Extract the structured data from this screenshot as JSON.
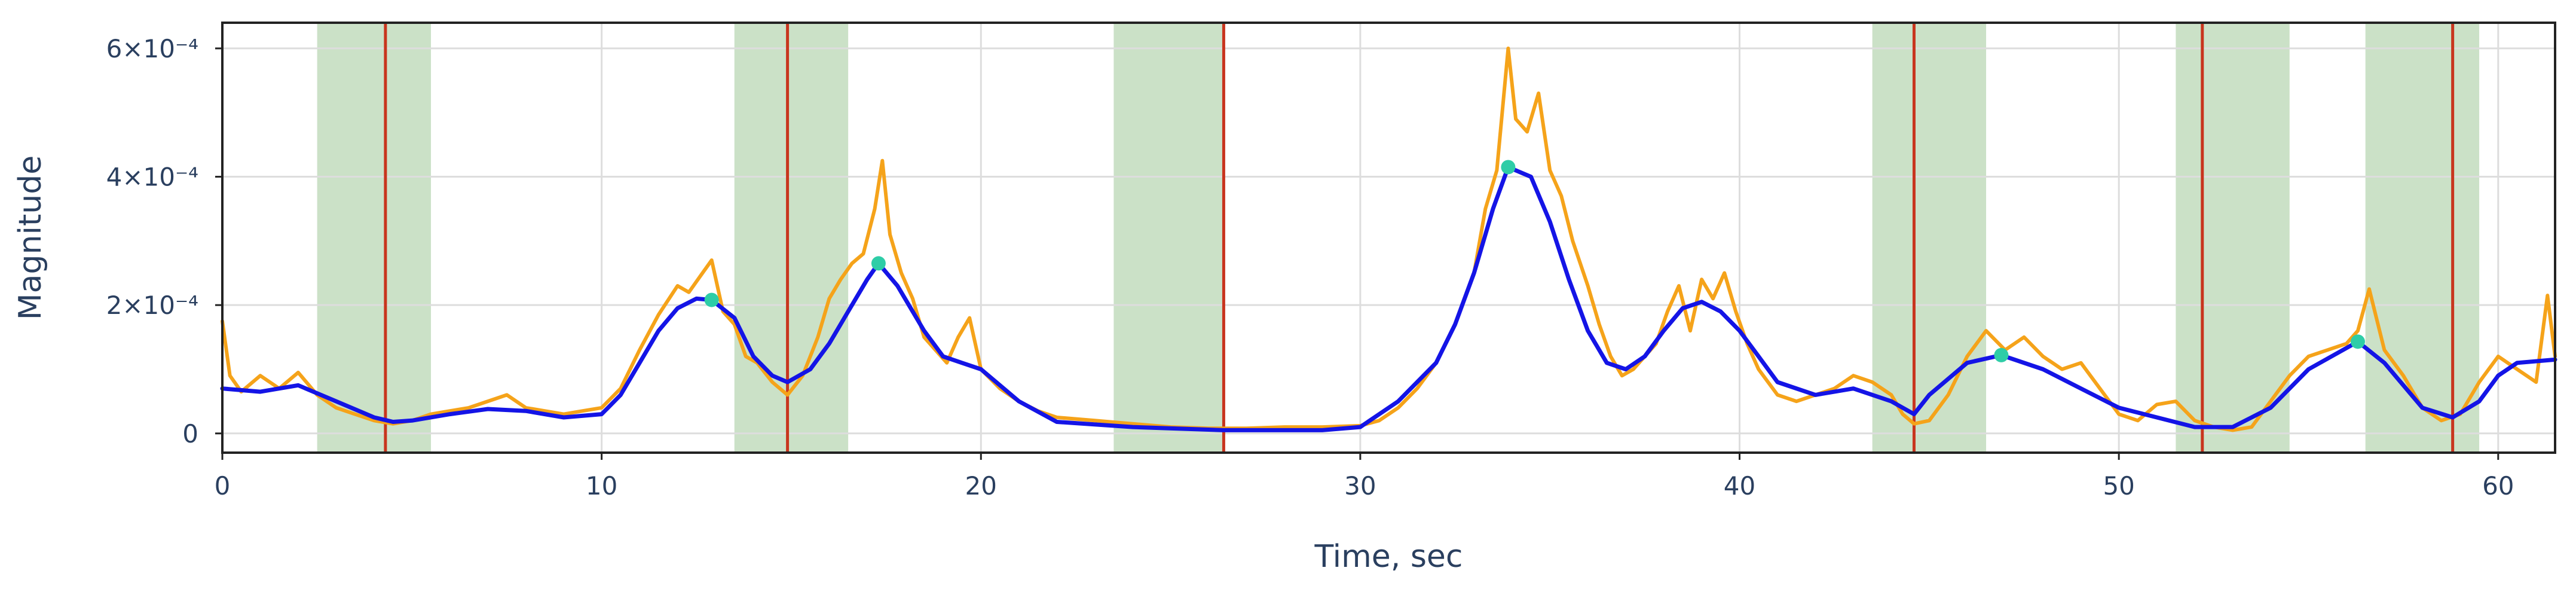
{
  "chart_data": {
    "type": "line",
    "title": "",
    "xlabel": "Time, sec",
    "ylabel": "Magnitude",
    "xlim": [
      0,
      61.5
    ],
    "ylim": [
      -3e-05,
      0.00064
    ],
    "x_ticks": [
      0,
      10,
      20,
      30,
      40,
      50,
      60
    ],
    "x_tick_labels": [
      "0",
      "10",
      "20",
      "30",
      "40",
      "50",
      "60"
    ],
    "y_ticks": [
      0,
      0.0002,
      0.0004,
      0.0006
    ],
    "y_tick_labels": [
      "0",
      "2×10⁻⁴",
      "4×10⁻⁴",
      "6×10⁻⁴"
    ],
    "grid": true,
    "legend": "none",
    "shaded_intervals": [
      [
        2.5,
        5.5
      ],
      [
        13.5,
        16.5
      ],
      [
        23.5,
        26.4
      ],
      [
        43.5,
        46.5
      ],
      [
        51.5,
        54.5
      ],
      [
        56.5,
        59.5
      ]
    ],
    "vertical_markers": [
      4.3,
      14.9,
      26.4,
      44.6,
      52.2,
      58.8
    ],
    "peak_markers": [
      {
        "x": 12.9,
        "y": 0.000208
      },
      {
        "x": 17.3,
        "y": 0.000265
      },
      {
        "x": 33.9,
        "y": 0.000415
      },
      {
        "x": 46.9,
        "y": 0.000122
      },
      {
        "x": 56.3,
        "y": 0.000143
      }
    ],
    "series": [
      {
        "role": "raw",
        "x": [
          0,
          0.2,
          0.5,
          1,
          1.5,
          2,
          2.5,
          3,
          3.5,
          4,
          4.5,
          5,
          5.5,
          6,
          6.5,
          7,
          7.5,
          8,
          8.5,
          9,
          9.5,
          10,
          10.5,
          11,
          11.5,
          12,
          12.3,
          12.6,
          12.9,
          13.2,
          13.5,
          13.8,
          14.1,
          14.5,
          14.9,
          15.3,
          15.7,
          16,
          16.3,
          16.6,
          16.9,
          17.2,
          17.4,
          17.6,
          17.9,
          18.2,
          18.5,
          18.8,
          19.1,
          19.4,
          19.7,
          20,
          20.5,
          21,
          21.5,
          22,
          23,
          24,
          25,
          26,
          27,
          28,
          29,
          30,
          30.5,
          31,
          31.5,
          32,
          32.5,
          33,
          33.3,
          33.6,
          33.9,
          34.1,
          34.4,
          34.7,
          35,
          35.3,
          35.6,
          36,
          36.3,
          36.6,
          36.9,
          37.2,
          37.5,
          37.8,
          38.1,
          38.4,
          38.7,
          39,
          39.3,
          39.6,
          39.9,
          40.2,
          40.5,
          41,
          41.5,
          42,
          42.5,
          43,
          43.5,
          44,
          44.3,
          44.6,
          45,
          45.5,
          46,
          46.5,
          47,
          47.5,
          48,
          48.5,
          49,
          49.5,
          50,
          50.5,
          51,
          51.5,
          52,
          52.5,
          53,
          53.5,
          54,
          54.5,
          55,
          55.5,
          56,
          56.3,
          56.6,
          57,
          57.5,
          58,
          58.5,
          59,
          59.5,
          60,
          60.5,
          61,
          61.3,
          61.5
        ],
        "y": [
          0.000175,
          9e-05,
          6.5e-05,
          9e-05,
          7e-05,
          9.5e-05,
          6e-05,
          4e-05,
          3e-05,
          2e-05,
          1.5e-05,
          2e-05,
          3e-05,
          3.5e-05,
          4e-05,
          5e-05,
          6e-05,
          4e-05,
          3.5e-05,
          3e-05,
          3.5e-05,
          4e-05,
          7e-05,
          0.00013,
          0.000185,
          0.00023,
          0.00022,
          0.000245,
          0.00027,
          0.00019,
          0.00017,
          0.00012,
          0.00011,
          8e-05,
          6e-05,
          9e-05,
          0.00015,
          0.00021,
          0.00024,
          0.000265,
          0.00028,
          0.00035,
          0.000425,
          0.00031,
          0.00025,
          0.00021,
          0.00015,
          0.00013,
          0.00011,
          0.00015,
          0.00018,
          0.0001,
          7e-05,
          5e-05,
          3.5e-05,
          2.5e-05,
          2e-05,
          1.5e-05,
          1e-05,
          8e-06,
          8e-06,
          1e-05,
          1e-05,
          1.2e-05,
          2e-05,
          4e-05,
          7e-05,
          0.00011,
          0.00017,
          0.00025,
          0.00035,
          0.00041,
          0.0006,
          0.00049,
          0.00047,
          0.00053,
          0.00041,
          0.00037,
          0.0003,
          0.00023,
          0.00017,
          0.00012,
          9e-05,
          0.0001,
          0.00012,
          0.00014,
          0.00019,
          0.00023,
          0.00016,
          0.00024,
          0.00021,
          0.00025,
          0.00019,
          0.00014,
          0.0001,
          6e-05,
          5e-05,
          6e-05,
          7e-05,
          9e-05,
          8e-05,
          6e-05,
          3e-05,
          1.5e-05,
          2e-05,
          6e-05,
          0.00012,
          0.00016,
          0.00013,
          0.00015,
          0.00012,
          0.0001,
          0.00011,
          7e-05,
          3e-05,
          2e-05,
          4.5e-05,
          5e-05,
          2e-05,
          1e-05,
          5e-06,
          1e-05,
          5e-05,
          9e-05,
          0.00012,
          0.00013,
          0.00014,
          0.00016,
          0.000225,
          0.00013,
          9e-05,
          4e-05,
          2e-05,
          3e-05,
          8e-05,
          0.00012,
          0.0001,
          8e-05,
          0.000215,
          0.00012
        ]
      },
      {
        "role": "smoothed",
        "x": [
          0,
          1,
          2,
          3,
          4,
          4.5,
          5,
          6,
          7,
          8,
          9,
          10,
          10.5,
          11,
          11.5,
          12,
          12.5,
          12.9,
          13.5,
          14,
          14.5,
          14.9,
          15.5,
          16,
          16.5,
          17,
          17.3,
          17.8,
          18.5,
          19,
          19.5,
          20,
          21,
          22,
          24,
          26.4,
          28,
          29,
          30,
          30.5,
          31,
          32,
          32.5,
          33,
          33.5,
          33.9,
          34.5,
          35,
          35.5,
          36,
          36.5,
          37,
          37.5,
          38,
          38.5,
          39,
          39.5,
          40,
          40.5,
          41,
          42,
          43,
          44,
          44.6,
          45,
          46,
          46.9,
          48,
          49,
          50,
          51,
          52,
          53,
          54,
          55,
          56.3,
          57,
          58,
          58.8,
          59.5,
          60,
          60.5,
          61.5
        ],
        "y": [
          7e-05,
          6.5e-05,
          7.5e-05,
          5e-05,
          2.5e-05,
          1.8e-05,
          2e-05,
          3e-05,
          3.8e-05,
          3.5e-05,
          2.5e-05,
          3e-05,
          6e-05,
          0.00011,
          0.00016,
          0.000195,
          0.00021,
          0.000208,
          0.00018,
          0.00012,
          9e-05,
          8e-05,
          0.0001,
          0.00014,
          0.00019,
          0.00024,
          0.000265,
          0.00023,
          0.00016,
          0.00012,
          0.00011,
          0.0001,
          5e-05,
          1.8e-05,
          1e-05,
          5e-06,
          5e-06,
          5e-06,
          1e-05,
          3e-05,
          5e-05,
          0.00011,
          0.00017,
          0.00025,
          0.00035,
          0.000415,
          0.0004,
          0.00033,
          0.00024,
          0.00016,
          0.00011,
          0.0001,
          0.00012,
          0.00016,
          0.000195,
          0.000205,
          0.00019,
          0.00016,
          0.00012,
          8e-05,
          6e-05,
          7e-05,
          5e-05,
          3e-05,
          6e-05,
          0.00011,
          0.000122,
          0.0001,
          7e-05,
          4e-05,
          2.5e-05,
          1e-05,
          1e-05,
          4e-05,
          0.0001,
          0.000143,
          0.00011,
          4e-05,
          2.5e-05,
          5e-05,
          9e-05,
          0.00011,
          0.000115
        ]
      }
    ],
    "colors": {
      "raw_line": "#F5A31A",
      "smooth_line": "#1414E6",
      "shaded_band": "#CBE1C7",
      "vertical_marker": "#C8351E",
      "peak_marker": "#2ECDA7",
      "grid": "#DDDDDD",
      "axis": "#222222",
      "text": "#2a3f5f"
    }
  }
}
